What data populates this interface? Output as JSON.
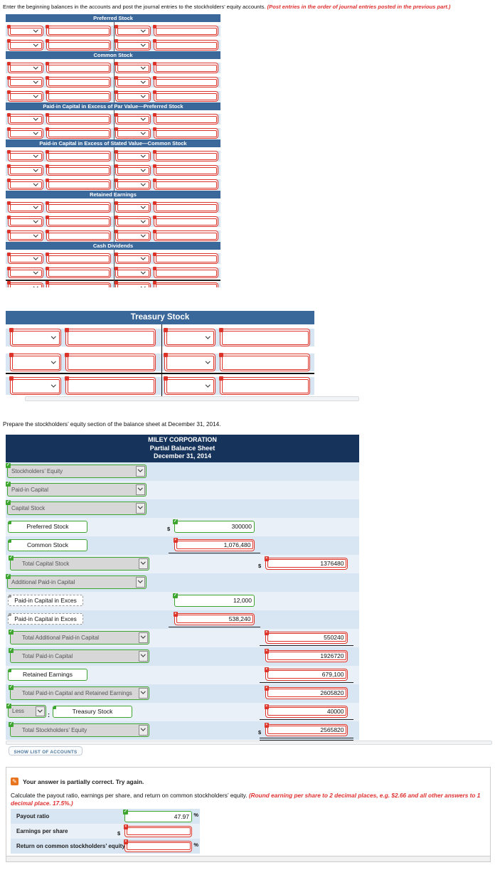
{
  "page": {
    "ledger_instruction": "Enter the beginning balances in the accounts and post the journal entries to the stockholders’ equity accounts.",
    "ledger_instruction_emphasis": "(Post entries in the order of journal entries posted in the previous part.)",
    "bs_instruction": "Prepare the stockholders’ equity section of the balance sheet at December 31, 2014."
  },
  "colors": {
    "account_header": "#3b689a",
    "balance_sheet_header": "#16335c",
    "row_blue": "#d8e5f2",
    "row_light": "#e9f0f8",
    "error_red": "#dc3227",
    "correct_green": "#3ea52f",
    "partial_orange": "#e8741e"
  },
  "ledger": {
    "accounts": [
      {
        "title": "Preferred Stock",
        "rows": 2
      },
      {
        "title": "Common Stock",
        "rows": 3
      },
      {
        "title": "Paid-in Capital in Excess of Par Value—Preferred Stock",
        "rows": 2
      },
      {
        "title": "Paid-in Capital in Excess of Stated Value—Common Stock",
        "rows": 3
      },
      {
        "title": "Retained Earnings",
        "rows": 3
      },
      {
        "title": "Cash Dividends",
        "rows": 3,
        "balance_line_after": 2
      }
    ],
    "treasury": {
      "title": "Treasury Stock",
      "rows": 3,
      "balance_line_after": 2
    }
  },
  "balance_sheet": {
    "header": [
      "MILEY CORPORATION",
      "Partial Balance Sheet",
      "December 31, 2014"
    ],
    "rows": [
      {
        "kind": "select",
        "label": "Stockholders’ Equity"
      },
      {
        "kind": "select",
        "label": "Paid-in Capital"
      },
      {
        "kind": "select",
        "label": "Capital Stock"
      },
      {
        "kind": "label",
        "label": "Preferred Stock",
        "amount": {
          "col": "mid",
          "value": "300000",
          "status": "correct",
          "prefix": "$"
        }
      },
      {
        "kind": "label",
        "label": "Common Stock",
        "amount": {
          "col": "mid",
          "value": "1,076,480",
          "status": "incorrect",
          "underline": "single"
        }
      },
      {
        "kind": "select",
        "label": "Total Capital Stock",
        "indent": true,
        "amount": {
          "col": "right",
          "value": "1376480",
          "status": "incorrect",
          "prefix": "$"
        }
      },
      {
        "kind": "select",
        "label": "Additional Paid-in Capital"
      },
      {
        "kind": "label",
        "label": "Paid-in Capital in Exces",
        "partial": true,
        "amount": {
          "col": "mid",
          "value": "12,000",
          "status": "correct"
        }
      },
      {
        "kind": "label",
        "label": "Paid-in Capital in Exces",
        "partial": true,
        "amount": {
          "col": "mid",
          "value": "538,240",
          "status": "incorrect",
          "underline": "single"
        }
      },
      {
        "kind": "select",
        "label": "Total Additional Paid-in Capital",
        "indent": true,
        "amount": {
          "col": "right",
          "value": "550240",
          "status": "incorrect",
          "underline": "single"
        }
      },
      {
        "kind": "select",
        "label": "Total Paid-in Capital",
        "indent": true,
        "amount": {
          "col": "right",
          "value": "1926720",
          "status": "incorrect"
        }
      },
      {
        "kind": "label",
        "label": "Retained Earnings",
        "amount": {
          "col": "right",
          "value": "679,100",
          "status": "incorrect",
          "underline": "single"
        }
      },
      {
        "kind": "select",
        "label": "Total Paid-in Capital and Retained Earnings",
        "indent": true,
        "amount": {
          "col": "right",
          "value": "2605820",
          "status": "incorrect"
        }
      },
      {
        "kind": "less",
        "less_label": "Less",
        "label": "Treasury Stock",
        "amount": {
          "col": "right",
          "value": "40000",
          "status": "incorrect",
          "underline": "single"
        }
      },
      {
        "kind": "select",
        "label": "Total Stockholders’ Equity",
        "indent": true,
        "amount": {
          "col": "right",
          "value": "2565820",
          "status": "incorrect",
          "prefix": "$",
          "underline": "double"
        }
      }
    ]
  },
  "show_list_button": "SHOW LIST OF ACCOUNTS",
  "feedback": {
    "status": "Your answer is partially correct.  Try again.",
    "instruction": "Calculate the payout ratio, earnings per share, and return on common stockholders’ equity.",
    "instruction_emphasis": "(Round earning per share to 2 decimal places, e.g. $2.66 and all other answers to 1 decimal place. 17.5%.)",
    "ratios": [
      {
        "label": "Payout ratio",
        "value": "47.97",
        "suffix": "%",
        "status": "correct"
      },
      {
        "label": "Earnings per share",
        "value": "",
        "prefix": "$",
        "status": "incorrect"
      },
      {
        "label": "Return on common stockholders’ equity",
        "value": "",
        "suffix": "%",
        "status": "incorrect"
      }
    ]
  }
}
